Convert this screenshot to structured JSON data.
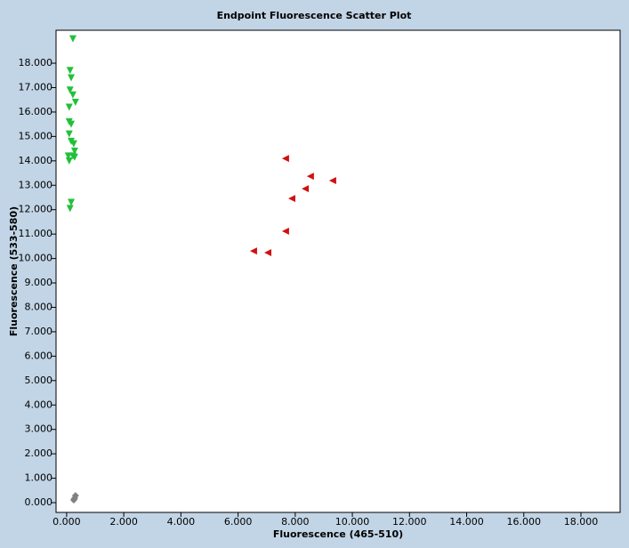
{
  "chart_data": {
    "type": "scatter",
    "title": "Endpoint Fluorescence Scatter Plot",
    "x_label": "Fluorescence (465-510)",
    "y_label": "Fluorescence (533-580)",
    "xlim": [
      -0.37,
      19.37
    ],
    "ylim": [
      -0.4,
      19.35
    ],
    "xticks": [
      {
        "value": 0,
        "label": "0.000"
      },
      {
        "value": 2,
        "label": "2.000"
      },
      {
        "value": 4,
        "label": "4.000"
      },
      {
        "value": 6,
        "label": "6.000"
      },
      {
        "value": 8,
        "label": "8.000"
      },
      {
        "value": 10,
        "label": "10.000"
      },
      {
        "value": 12,
        "label": "12.000"
      },
      {
        "value": 14,
        "label": "14.000"
      },
      {
        "value": 16,
        "label": "16.000"
      },
      {
        "value": 18,
        "label": "18.000"
      }
    ],
    "yticks": [
      {
        "value": 0,
        "label": "0.000"
      },
      {
        "value": 1,
        "label": "1.000"
      },
      {
        "value": 2,
        "label": "2.000"
      },
      {
        "value": 3,
        "label": "3.000"
      },
      {
        "value": 4,
        "label": "4.000"
      },
      {
        "value": 5,
        "label": "5.000"
      },
      {
        "value": 6,
        "label": "6.000"
      },
      {
        "value": 7,
        "label": "7.000"
      },
      {
        "value": 8,
        "label": "8.000"
      },
      {
        "value": 9,
        "label": "9.000"
      },
      {
        "value": 10,
        "label": "10.000"
      },
      {
        "value": 11,
        "label": "11.000"
      },
      {
        "value": 12,
        "label": "12.000"
      },
      {
        "value": 13,
        "label": "13.000"
      },
      {
        "value": 14,
        "label": "14.000"
      },
      {
        "value": 15,
        "label": "15.000"
      },
      {
        "value": 16,
        "label": "16.000"
      },
      {
        "value": 17,
        "label": "17.000"
      },
      {
        "value": 18,
        "label": "18.000"
      }
    ],
    "series": [
      {
        "color": "#22c03a",
        "marker": "triangle-down",
        "x": [
          0.22,
          0.12,
          0.16,
          0.12,
          0.22,
          0.31,
          0.09,
          0.09,
          0.16,
          0.09,
          0.16,
          0.25,
          0.28,
          0.06,
          0.22,
          0.09,
          0.28,
          0.16,
          0.12
        ],
        "values": [
          19.0,
          17.7,
          17.4,
          16.9,
          16.7,
          16.4,
          16.2,
          15.6,
          15.5,
          15.1,
          14.8,
          14.7,
          14.4,
          14.2,
          14.2,
          14.0,
          14.15,
          12.3,
          12.05
        ]
      },
      {
        "color": "#d01010",
        "marker": "triangle-left",
        "x": [
          7.66,
          8.53,
          9.31,
          8.35,
          7.88,
          7.66,
          6.54,
          7.04
        ],
        "values": [
          14.1,
          13.37,
          13.19,
          12.86,
          12.46,
          11.12,
          10.31,
          10.24
        ]
      },
      {
        "color": "#808080",
        "marker": "diamond",
        "x": [
          0.31,
          0.28,
          0.25
        ],
        "values": [
          0.29,
          0.18,
          0.11
        ]
      }
    ]
  }
}
